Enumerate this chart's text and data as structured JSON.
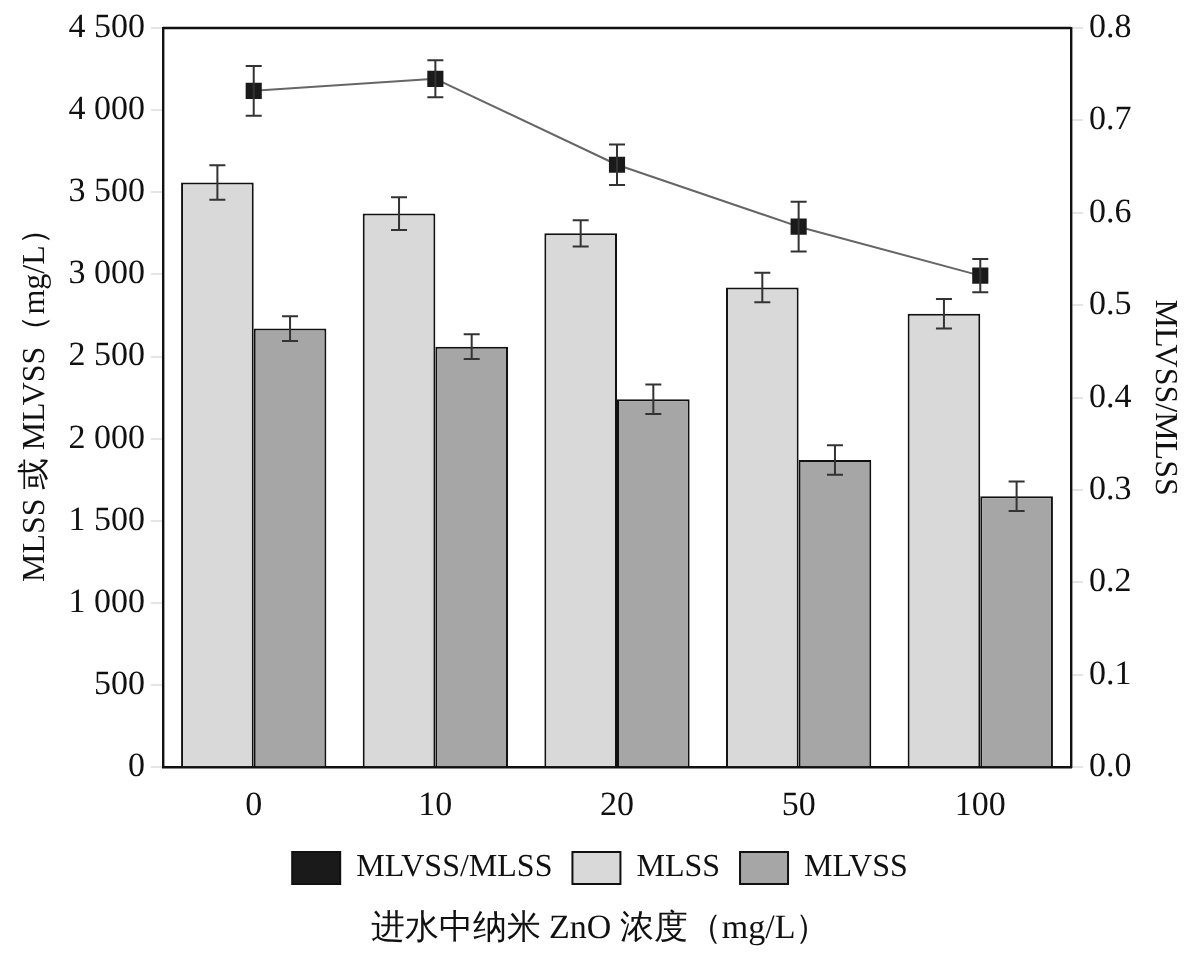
{
  "chart_data": {
    "type": "bar",
    "categories": [
      "0",
      "10",
      "20",
      "50",
      "100"
    ],
    "xlabel": "进水中纳米 ZnO 浓度（mg/L）",
    "ylabel": "MLSS 或 MLVSS（mg/L）",
    "y2label": "MLVSS/MLSS",
    "ylim": [
      0,
      4500
    ],
    "yticks": [
      0,
      500,
      {
        "value": 1000,
        "label": "1 000"
      },
      {
        "value": 1500,
        "label": "1 500"
      },
      {
        "value": 2000,
        "label": "2 000"
      },
      {
        "value": 2500,
        "label": "2 500"
      },
      {
        "value": 3000,
        "label": "3 000"
      },
      {
        "value": 3500,
        "label": "3 500"
      },
      {
        "value": 4000,
        "label": "4 000"
      },
      {
        "value": 4500,
        "label": "4 500"
      }
    ],
    "y2lim": [
      0,
      0.8
    ],
    "y2ticks": [
      {
        "value": 0,
        "label": "0.0"
      },
      0.1,
      0.2,
      0.3,
      0.4,
      0.5,
      0.6,
      0.7,
      0.8
    ],
    "series": [
      {
        "name": "MLVSS/MLSS",
        "type": "line",
        "axis": "y2",
        "color": "#1a1a1a",
        "values": [
          0.732,
          0.745,
          0.652,
          0.585,
          0.532
        ],
        "errors": [
          0.027,
          0.02,
          0.022,
          0.027,
          0.018
        ]
      },
      {
        "name": "MLSS",
        "color": "#d9d9d9",
        "values": [
          3560,
          3370,
          3250,
          2920,
          2760
        ],
        "errors": [
          105,
          100,
          80,
          90,
          90
        ]
      },
      {
        "name": "MLVSS",
        "color": "#a6a6a6",
        "values": [
          2670,
          2560,
          2240,
          1870,
          1650
        ],
        "errors": [
          75,
          75,
          90,
          90,
          90
        ]
      }
    ],
    "marker": "square",
    "legend": "bottom",
    "grid": false
  }
}
